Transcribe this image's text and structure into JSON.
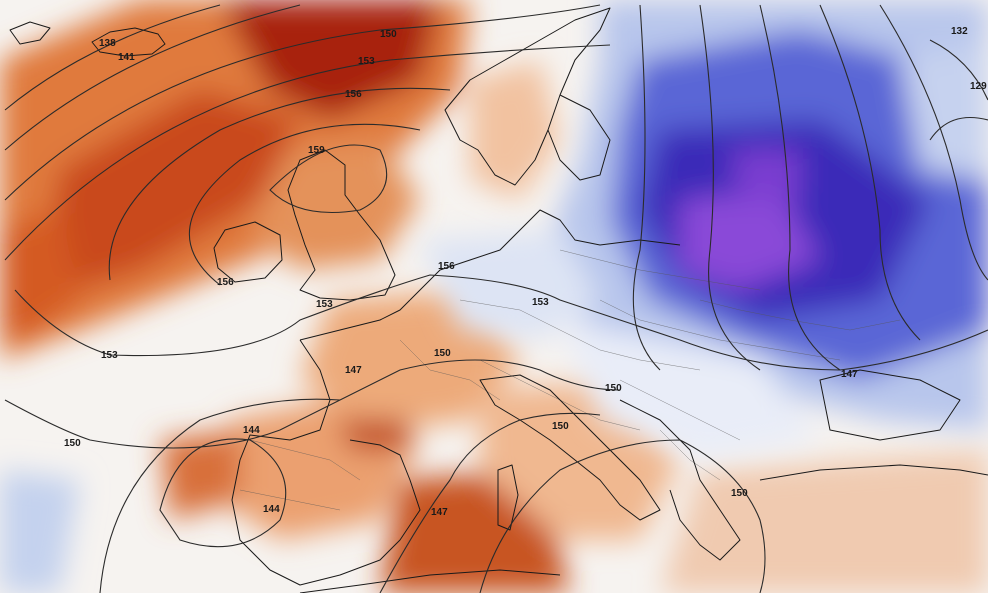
{
  "map": {
    "field": "anomaly-shading",
    "colors": {
      "warm_strong": "#a8200e",
      "warm_mid": "#d8602a",
      "warm_light": "#f0b48a",
      "neutral": "#ffffff",
      "cold_light": "#b8c8ea",
      "cold_mid": "#4a56d0",
      "cold_strong": "#3a2ab8",
      "cold_purple": "#8a4ad8",
      "contour": "#2b2b2b",
      "coast": "#1a1a1a"
    },
    "contour_labels": [
      "138",
      "141",
      "150",
      "153",
      "156",
      "159",
      "156",
      "153",
      "153",
      "150",
      "156",
      "153",
      "150",
      "147",
      "144",
      "144",
      "147",
      "150",
      "150",
      "147",
      "150",
      "132",
      "129"
    ]
  }
}
